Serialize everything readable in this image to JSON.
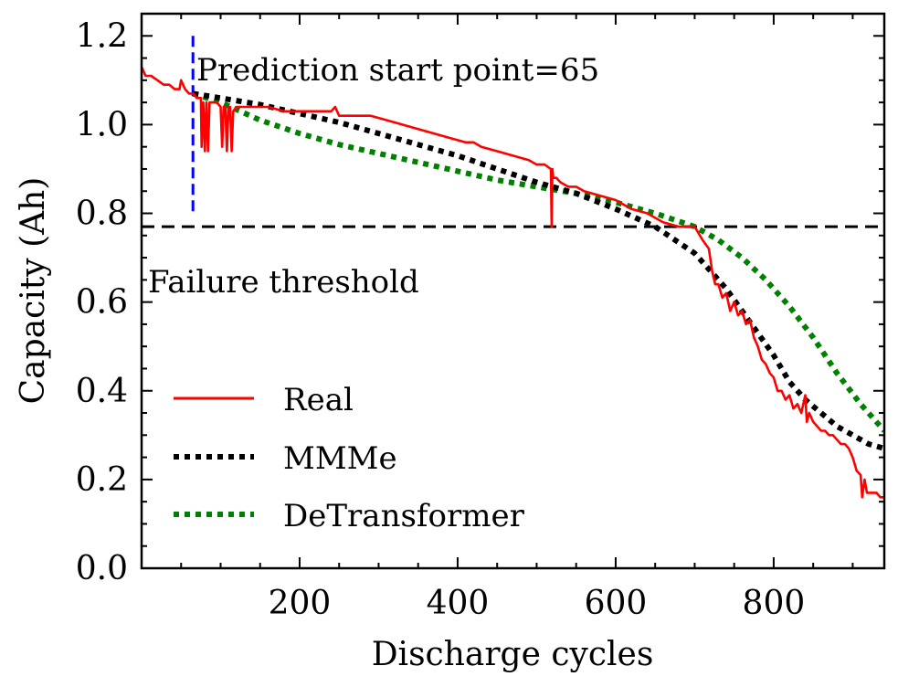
{
  "chart_data": {
    "type": "line",
    "xlabel": "Discharge cycles",
    "ylabel": "Capacity (Ah)",
    "xlim": [
      0,
      940
    ],
    "ylim": [
      0.0,
      1.25
    ],
    "x_ticks": [
      200,
      400,
      600,
      800
    ],
    "x_tick_labels": [
      "200",
      "400",
      "600",
      "800"
    ],
    "y_ticks": [
      0.0,
      0.2,
      0.4,
      0.6,
      0.8,
      1.0,
      1.2
    ],
    "y_tick_labels": [
      "0.0",
      "0.2",
      "0.4",
      "0.6",
      "0.8",
      "1.0",
      "1.2"
    ],
    "grid": false,
    "legend_position": "lower-left",
    "series": [
      {
        "name": "Real",
        "color": "#ff0000",
        "style": "solid",
        "x": [
          0,
          5,
          12,
          20,
          28,
          35,
          42,
          48,
          50,
          55,
          60,
          65,
          70,
          75,
          76,
          78,
          80,
          82,
          84,
          86,
          90,
          95,
          100,
          102,
          104,
          106,
          108,
          110,
          112,
          114,
          116,
          120,
          140,
          160,
          180,
          200,
          220,
          240,
          245,
          250,
          270,
          290,
          310,
          330,
          350,
          370,
          390,
          410,
          420,
          430,
          450,
          470,
          490,
          500,
          510,
          518,
          519,
          520,
          521,
          525,
          530,
          540,
          550,
          560,
          580,
          600,
          620,
          640,
          660,
          680,
          700,
          710,
          718,
          722,
          726,
          730,
          735,
          740,
          745,
          750,
          755,
          760,
          765,
          770,
          775,
          780,
          785,
          790,
          795,
          800,
          805,
          810,
          815,
          820,
          825,
          830,
          835,
          840,
          842,
          845,
          850,
          855,
          860,
          865,
          870,
          875,
          880,
          885,
          890,
          895,
          900,
          905,
          910,
          912,
          915,
          918,
          920,
          925,
          930,
          935,
          940
        ],
        "y": [
          1.13,
          1.11,
          1.11,
          1.1,
          1.09,
          1.09,
          1.08,
          1.08,
          1.1,
          1.08,
          1.07,
          1.07,
          1.06,
          1.06,
          0.95,
          1.05,
          0.94,
          1.05,
          0.94,
          1.05,
          1.05,
          1.05,
          1.04,
          0.95,
          1.04,
          1.04,
          0.94,
          1.04,
          1.04,
          0.94,
          1.03,
          1.04,
          1.04,
          1.04,
          1.03,
          1.03,
          1.03,
          1.03,
          1.04,
          1.02,
          1.02,
          1.02,
          1.01,
          1.0,
          0.99,
          0.98,
          0.97,
          0.96,
          0.96,
          0.95,
          0.94,
          0.93,
          0.92,
          0.91,
          0.91,
          0.9,
          0.77,
          0.9,
          0.88,
          0.88,
          0.87,
          0.86,
          0.86,
          0.85,
          0.84,
          0.83,
          0.81,
          0.8,
          0.78,
          0.77,
          0.77,
          0.74,
          0.72,
          0.67,
          0.64,
          0.64,
          0.61,
          0.62,
          0.58,
          0.6,
          0.57,
          0.58,
          0.55,
          0.56,
          0.52,
          0.5,
          0.47,
          0.46,
          0.44,
          0.43,
          0.4,
          0.4,
          0.38,
          0.39,
          0.36,
          0.37,
          0.35,
          0.39,
          0.33,
          0.35,
          0.33,
          0.32,
          0.31,
          0.31,
          0.3,
          0.3,
          0.29,
          0.28,
          0.28,
          0.27,
          0.25,
          0.22,
          0.21,
          0.16,
          0.2,
          0.17,
          0.17,
          0.17,
          0.17,
          0.16,
          0.16
        ]
      },
      {
        "name": "MMMe",
        "color": "#000000",
        "style": "dotted",
        "x": [
          65,
          100,
          150,
          200,
          250,
          300,
          350,
          400,
          450,
          500,
          550,
          600,
          650,
          700,
          720,
          740,
          760,
          780,
          800,
          820,
          840,
          860,
          880,
          900,
          920,
          940
        ],
        "y": [
          1.07,
          1.06,
          1.045,
          1.025,
          1.005,
          0.98,
          0.955,
          0.93,
          0.9,
          0.87,
          0.845,
          0.81,
          0.77,
          0.71,
          0.67,
          0.63,
          0.58,
          0.53,
          0.48,
          0.42,
          0.38,
          0.35,
          0.32,
          0.3,
          0.28,
          0.27
        ]
      },
      {
        "name": "DeTransformer",
        "color": "#008000",
        "style": "dotted",
        "x": [
          65,
          100,
          150,
          200,
          250,
          300,
          350,
          400,
          450,
          500,
          550,
          600,
          650,
          700,
          730,
          760,
          790,
          820,
          850,
          880,
          910,
          940
        ],
        "y": [
          1.07,
          1.05,
          1.01,
          0.98,
          0.955,
          0.935,
          0.915,
          0.895,
          0.875,
          0.86,
          0.845,
          0.825,
          0.8,
          0.77,
          0.74,
          0.7,
          0.65,
          0.59,
          0.52,
          0.44,
          0.37,
          0.31
        ]
      }
    ],
    "annotations": [
      {
        "text": "Prediction start point=65",
        "x": 65,
        "y": 1.1,
        "type": "vline",
        "color": "#0000ff",
        "line_from": 0.8,
        "line_to": 1.2
      },
      {
        "text": "Failure threshold",
        "x": 0,
        "y": 0.62,
        "type": "hline",
        "color": "#000000",
        "value": 0.77
      }
    ]
  }
}
